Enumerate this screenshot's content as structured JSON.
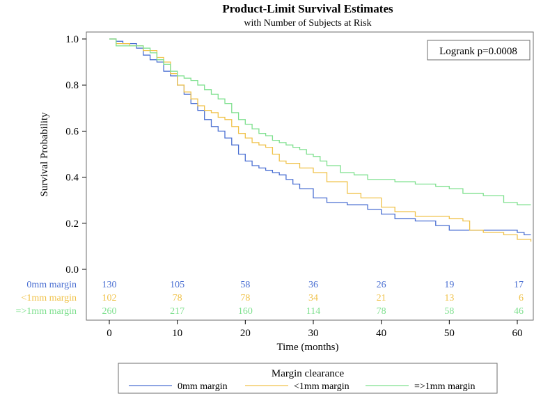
{
  "chart_data": {
    "type": "line",
    "step": true,
    "title": "Product-Limit Survival Estimates",
    "subtitle": "with Number of Subjects at Risk",
    "xlabel": "Time (months)",
    "ylabel": "Survival Probability",
    "xlim": [
      0,
      62
    ],
    "ylim": [
      0,
      1
    ],
    "xticks": [
      0,
      10,
      20,
      30,
      40,
      50,
      60
    ],
    "yticks": [
      "0.0",
      "0.2",
      "0.4",
      "0.6",
      "0.8",
      "1.0"
    ],
    "annotation": "Logrank p=0.0008",
    "legend": {
      "title": "Margin clearance",
      "position": "bottom"
    },
    "series": [
      {
        "name": "0mm margin",
        "color": "#4a6fd2",
        "x": [
          0,
          1,
          2,
          4,
          5,
          6,
          7,
          8,
          9,
          10,
          11,
          12,
          13,
          14,
          15,
          16,
          17,
          18,
          19,
          20,
          21,
          22,
          23,
          24,
          25,
          26,
          27,
          28,
          30,
          32,
          35,
          38,
          40,
          42,
          45,
          48,
          50,
          53,
          55,
          58,
          60,
          61,
          62
        ],
        "y": [
          1.0,
          0.99,
          0.98,
          0.96,
          0.93,
          0.91,
          0.9,
          0.86,
          0.84,
          0.8,
          0.76,
          0.72,
          0.69,
          0.65,
          0.62,
          0.6,
          0.57,
          0.54,
          0.5,
          0.47,
          0.45,
          0.44,
          0.43,
          0.42,
          0.41,
          0.39,
          0.37,
          0.35,
          0.31,
          0.29,
          0.28,
          0.26,
          0.24,
          0.22,
          0.21,
          0.19,
          0.17,
          0.17,
          0.17,
          0.17,
          0.16,
          0.15,
          0.15
        ]
      },
      {
        "name": "<1mm margin",
        "color": "#f0c24a",
        "x": [
          0,
          1,
          3,
          5,
          7,
          8,
          9,
          10,
          11,
          12,
          13,
          14,
          15,
          16,
          17,
          18,
          19,
          20,
          21,
          22,
          23,
          24,
          25,
          26,
          28,
          30,
          32,
          35,
          37,
          40,
          42,
          45,
          48,
          50,
          52,
          53,
          55,
          58,
          60,
          62
        ],
        "y": [
          1.0,
          0.98,
          0.97,
          0.95,
          0.92,
          0.9,
          0.85,
          0.8,
          0.77,
          0.74,
          0.71,
          0.69,
          0.68,
          0.66,
          0.65,
          0.62,
          0.59,
          0.57,
          0.55,
          0.54,
          0.53,
          0.5,
          0.47,
          0.46,
          0.44,
          0.42,
          0.38,
          0.33,
          0.31,
          0.27,
          0.25,
          0.23,
          0.23,
          0.22,
          0.21,
          0.17,
          0.16,
          0.15,
          0.13,
          0.12
        ]
      },
      {
        "name": "=>1mm margin",
        "color": "#7ee08e",
        "x": [
          0,
          1,
          3,
          5,
          6,
          7,
          8,
          9,
          10,
          11,
          12,
          13,
          14,
          15,
          16,
          17,
          18,
          19,
          20,
          21,
          22,
          23,
          24,
          25,
          26,
          27,
          28,
          29,
          30,
          31,
          32,
          34,
          36,
          38,
          40,
          42,
          45,
          48,
          50,
          52,
          55,
          58,
          60,
          62
        ],
        "y": [
          1.0,
          0.97,
          0.97,
          0.96,
          0.94,
          0.91,
          0.89,
          0.86,
          0.84,
          0.83,
          0.82,
          0.8,
          0.78,
          0.76,
          0.74,
          0.72,
          0.68,
          0.65,
          0.63,
          0.61,
          0.59,
          0.58,
          0.56,
          0.55,
          0.54,
          0.53,
          0.52,
          0.5,
          0.49,
          0.47,
          0.45,
          0.42,
          0.41,
          0.39,
          0.39,
          0.38,
          0.37,
          0.36,
          0.35,
          0.33,
          0.32,
          0.29,
          0.28,
          0.28
        ]
      }
    ],
    "at_risk": {
      "times": [
        0,
        10,
        20,
        30,
        40,
        50,
        60
      ],
      "rows": [
        {
          "label": "0mm margin",
          "color": "#4a6fd2",
          "values": [
            "130",
            "105",
            "58",
            "36",
            "26",
            "19",
            "17"
          ]
        },
        {
          "label": "<1mm margin",
          "color": "#f0c24a",
          "values": [
            "102",
            "78",
            "78",
            "34",
            "21",
            "13",
            "6"
          ]
        },
        {
          "label": "=>1mm margin",
          "color": "#7ee08e",
          "values": [
            "260",
            "217",
            "160",
            "114",
            "78",
            "58",
            "46"
          ]
        }
      ]
    }
  }
}
